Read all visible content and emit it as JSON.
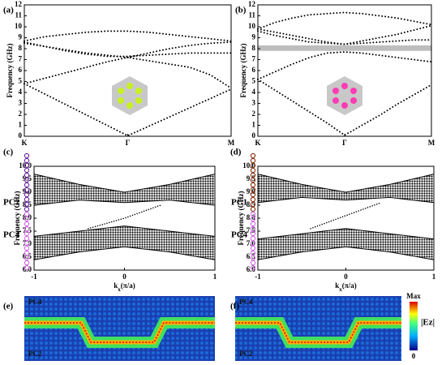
{
  "chart_data": [
    {
      "type": "line",
      "label": "(a)",
      "ylabel": "Frequency (GHz)",
      "x": [
        0,
        0.1,
        0.2,
        0.3,
        0.4,
        0.5,
        0.6,
        0.7,
        0.8,
        0.9,
        1
      ],
      "xlim": [
        0,
        1
      ],
      "ylim": [
        0,
        12
      ],
      "xticks": [
        {
          "value": 0,
          "label": "K"
        },
        {
          "value": 0.5,
          "label": "Γ"
        },
        {
          "value": 1,
          "label": "M"
        }
      ],
      "yticks": [
        0,
        1,
        2,
        3,
        4,
        5,
        6,
        7,
        8,
        9,
        10,
        11,
        12
      ],
      "series": [
        {
          "color": "#000000",
          "values": [
            4.8,
            3.85,
            2.9,
            1.95,
            1.0,
            0.05,
            0.9,
            1.75,
            2.6,
            3.45,
            4.3
          ]
        },
        {
          "color": "#000000",
          "values": [
            4.8,
            5.3,
            5.8,
            6.3,
            6.8,
            7.2,
            7.6,
            8.0,
            8.3,
            8.5,
            8.6
          ]
        },
        {
          "color": "#000000",
          "values": [
            8.5,
            8.2,
            7.9,
            7.6,
            7.4,
            7.2,
            6.9,
            6.6,
            6.3,
            5.6,
            4.4
          ]
        },
        {
          "color": "#000000",
          "values": [
            8.6,
            8.2,
            7.8,
            7.5,
            7.3,
            7.3,
            7.4,
            7.5,
            7.6,
            7.6,
            7.6
          ]
        },
        {
          "color": "#000000",
          "values": [
            8.7,
            9.1,
            9.3,
            9.5,
            9.6,
            9.6,
            9.5,
            9.3,
            9.1,
            8.9,
            8.7
          ]
        }
      ]
    },
    {
      "type": "line",
      "label": "(b)",
      "ylabel": "Frequency (GHz)",
      "x": [
        0,
        0.1,
        0.2,
        0.3,
        0.4,
        0.5,
        0.6,
        0.7,
        0.8,
        0.9,
        1
      ],
      "xlim": [
        0,
        1
      ],
      "ylim": [
        0,
        12
      ],
      "gap": [
        7.8,
        8.3
      ],
      "xticks": [
        {
          "value": 0,
          "label": "K"
        },
        {
          "value": 0.5,
          "label": "Γ"
        },
        {
          "value": 1,
          "label": "M"
        }
      ],
      "yticks": [
        0,
        1,
        2,
        3,
        4,
        5,
        6,
        7,
        8,
        9,
        10,
        11,
        12
      ],
      "series": [
        {
          "color": "#000000",
          "values": [
            5.2,
            4.2,
            3.2,
            2.2,
            1.2,
            0.1,
            1.0,
            1.9,
            2.9,
            3.8,
            4.7
          ]
        },
        {
          "color": "#000000",
          "values": [
            5.2,
            5.9,
            6.6,
            7.2,
            7.6,
            7.7,
            7.6,
            7.4,
            7.2,
            7.0,
            6.8
          ]
        },
        {
          "color": "#000000",
          "values": [
            9.6,
            9.2,
            8.9,
            8.6,
            8.5,
            8.4,
            8.5,
            8.6,
            8.7,
            8.8,
            8.8
          ]
        },
        {
          "color": "#000000",
          "values": [
            9.8,
            9.5,
            9.2,
            8.9,
            8.6,
            8.4,
            8.7,
            9.0,
            9.3,
            9.7,
            10.1
          ]
        },
        {
          "color": "#000000",
          "values": [
            9.8,
            10.4,
            10.8,
            11.1,
            11.2,
            11.3,
            11.2,
            11.0,
            10.8,
            10.5,
            10.2
          ]
        }
      ]
    },
    {
      "type": "band",
      "label": "(c)",
      "ylabel": "Frequency (GHz)",
      "xlabel": "k",
      "xlabel_sub": "x",
      "xlabel_rest": "(π/a)",
      "top_pc": "PC2",
      "bottom_pc": "PC4",
      "x": [
        -1,
        -0.5,
        0,
        0.5,
        1
      ],
      "xlim": [
        -1,
        1
      ],
      "ylim": [
        6,
        10
      ],
      "xticks": [
        -1,
        0,
        1
      ],
      "yticks": [
        {
          "value": 6,
          "label": "6.0"
        },
        {
          "value": 6.5,
          "label": "6.5"
        },
        {
          "value": 7,
          "label": "7.0"
        },
        {
          "value": 7.5,
          "label": "7.5"
        },
        {
          "value": 8,
          "label": "8.0"
        },
        {
          "value": 8.5,
          "label": "8.5"
        },
        {
          "value": 9,
          "label": "9.0"
        },
        {
          "value": 9.5,
          "label": "9.5"
        },
        {
          "value": 10,
          "label": "10.0"
        }
      ],
      "bands": [
        {
          "low": [
            8.5,
            8.7,
            8.6,
            8.7,
            8.5
          ],
          "high": [
            9.7,
            9.3,
            9.0,
            9.3,
            9.7
          ]
        },
        {
          "low": [
            6.4,
            6.7,
            6.9,
            6.7,
            6.4
          ],
          "high": [
            7.3,
            7.5,
            7.7,
            7.5,
            7.3
          ]
        }
      ],
      "edge": {
        "x": [
          -0.4,
          0,
          0.4
        ],
        "y": [
          7.6,
          8.0,
          8.5
        ]
      }
    },
    {
      "type": "band",
      "label": "(d)",
      "ylabel": "Frequency (GHz)",
      "xlabel": "k",
      "xlabel_sub": "x",
      "xlabel_rest": "(π/a)",
      "top_pc": "PC1",
      "bottom_pc": "PC4",
      "x": [
        -1,
        -0.5,
        0,
        0.5,
        1
      ],
      "xlim": [
        -1,
        1
      ],
      "ylim": [
        6,
        10
      ],
      "xticks": [
        -1,
        0,
        1
      ],
      "yticks": [
        {
          "value": 6,
          "label": "6.0"
        },
        {
          "value": 6.5,
          "label": "6.5"
        },
        {
          "value": 7,
          "label": "7.0"
        },
        {
          "value": 7.5,
          "label": "7.5"
        },
        {
          "value": 8,
          "label": "8.0"
        },
        {
          "value": 8.5,
          "label": "8.5"
        },
        {
          "value": 9,
          "label": "9.0"
        },
        {
          "value": 9.5,
          "label": "9.5"
        },
        {
          "value": 10,
          "label": "10.0"
        }
      ],
      "bands": [
        {
          "low": [
            8.6,
            8.8,
            8.7,
            8.8,
            8.6
          ],
          "high": [
            9.7,
            9.3,
            9.0,
            9.3,
            9.7
          ]
        },
        {
          "low": [
            6.4,
            6.7,
            6.9,
            6.7,
            6.4
          ],
          "high": [
            7.2,
            7.4,
            7.6,
            7.4,
            7.2
          ]
        }
      ],
      "edge": {
        "x": [
          -0.4,
          0,
          0.4
        ],
        "y": [
          7.6,
          8.1,
          8.6
        ]
      }
    }
  ],
  "fields": [
    {
      "label": "(e)",
      "top_pc": "PC4",
      "bottom_pc": "PC2"
    },
    {
      "label": "(f)",
      "top_pc": "PC4",
      "bottom_pc": "PC2"
    }
  ],
  "colorbar": {
    "max": "Max",
    "min": "0",
    "quantity": "|Ez|"
  }
}
